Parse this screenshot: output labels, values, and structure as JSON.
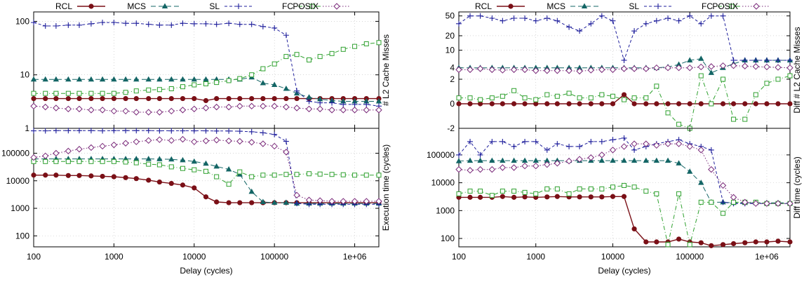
{
  "figure": {
    "left": {
      "xlabel": "Delay (cycles)",
      "ylabel_top": "# L2 Cache Misses",
      "ylabel_bottom": "Execution time (cycles)"
    },
    "right": {
      "xlabel": "Delay (cycles)",
      "ylabel_top": "Diff # L2 Cache Misses",
      "ylabel_bottom": "Diff time (cycles)"
    },
    "legend": [
      "RCL",
      "MCS",
      "SL",
      "FC",
      "POSIX"
    ],
    "x_ticks": [
      "100",
      "1000",
      "10000",
      "100000",
      "1e+06"
    ],
    "y_ticks": {
      "left_top": [
        "1",
        "10",
        "100"
      ],
      "left_bottom": [
        "100",
        "1000",
        "10000",
        "100000"
      ],
      "right_top": [
        "-2",
        "0",
        "2",
        "4",
        "10",
        "20",
        "50"
      ],
      "right_bottom": [
        "100",
        "1000",
        "10000",
        "100000"
      ]
    },
    "colors": {
      "RCL": "#7a0f16",
      "MCS": "#136565",
      "SL": "#1f1f9c",
      "FC": "#2fa12f",
      "POSIX": "#7a2a7a"
    },
    "markers": {
      "RCL": "filled-circle",
      "MCS": "filled-triangle",
      "SL": "plus",
      "FC": "open-square",
      "POSIX": "open-diamond"
    }
  },
  "chart_data": [
    {
      "type": "line",
      "panel": "left-top",
      "ylabel": "# L2 Cache Misses",
      "yscale": "log",
      "ylim": [
        1,
        150
      ],
      "xscale": "log",
      "xlim": [
        100,
        2000000
      ],
      "x": [
        100,
        140,
        190,
        270,
        370,
        520,
        720,
        1000,
        1400,
        1900,
        2700,
        3700,
        5200,
        7200,
        10000,
        14000,
        19000,
        27000,
        37000,
        52000,
        72000,
        100000,
        140000,
        190000,
        270000,
        370000,
        520000,
        720000,
        1000000,
        1400000,
        2000000
      ],
      "series": [
        {
          "name": "RCL",
          "values": [
            3.6,
            3.6,
            3.6,
            3.6,
            3.6,
            3.6,
            3.6,
            3.6,
            3.6,
            3.6,
            3.6,
            3.6,
            3.6,
            3.6,
            3.6,
            3.3,
            3.6,
            3.6,
            3.6,
            3.6,
            3.6,
            3.6,
            3.6,
            3.6,
            3.6,
            3.6,
            3.6,
            3.6,
            3.6,
            3.6,
            3.6
          ]
        },
        {
          "name": "MCS",
          "values": [
            8.2,
            8.2,
            8.2,
            8.2,
            8.2,
            8.2,
            8.2,
            8.2,
            8.2,
            8.2,
            8.2,
            8.2,
            8.2,
            8.2,
            8.2,
            8.2,
            8.2,
            8.2,
            8.2,
            9.0,
            7.0,
            6.5,
            5.5,
            4.5,
            3.8,
            3.5,
            3.3,
            3.2,
            3.2,
            3.2,
            3.2
          ]
        },
        {
          "name": "SL",
          "values": [
            95,
            82,
            82,
            85,
            85,
            90,
            95,
            95,
            92,
            92,
            88,
            85,
            85,
            92,
            90,
            90,
            88,
            92,
            88,
            88,
            80,
            75,
            55,
            5,
            3.2,
            3.0,
            3.0,
            2.8,
            2.8,
            2.8,
            2.6
          ]
        },
        {
          "name": "FC",
          "values": [
            4.5,
            4.5,
            4.5,
            4.5,
            4.5,
            4.5,
            4.5,
            4.5,
            4.7,
            5.0,
            5.2,
            5.3,
            5.5,
            6.0,
            6.5,
            6.8,
            7.2,
            7.8,
            8.5,
            10,
            13,
            16,
            22,
            24,
            19,
            22,
            25,
            30,
            34,
            38,
            40
          ]
        },
        {
          "name": "POSIX",
          "values": [
            2.6,
            2.5,
            2.4,
            2.3,
            2.3,
            2.2,
            2.2,
            2.1,
            2.1,
            2.0,
            2.0,
            2.0,
            2.1,
            2.2,
            2.3,
            2.4,
            2.5,
            2.5,
            2.6,
            2.6,
            2.6,
            2.6,
            2.5,
            2.4,
            2.3,
            2.3,
            2.2,
            2.2,
            2.2,
            2.2,
            2.2
          ]
        }
      ]
    },
    {
      "type": "line",
      "panel": "left-bottom",
      "ylabel": "Execution time (cycles)",
      "yscale": "log",
      "ylim": [
        40,
        800000
      ],
      "xscale": "log",
      "xlim": [
        100,
        2000000
      ],
      "x": [
        100,
        140,
        190,
        270,
        370,
        520,
        720,
        1000,
        1400,
        1900,
        2700,
        3700,
        5200,
        7200,
        10000,
        14000,
        19000,
        27000,
        37000,
        52000,
        72000,
        100000,
        140000,
        190000,
        270000,
        370000,
        520000,
        720000,
        1000000,
        1400000,
        2000000
      ],
      "series": [
        {
          "name": "RCL",
          "values": [
            16000,
            16000,
            16000,
            15500,
            15500,
            15000,
            14500,
            14000,
            13000,
            12000,
            10500,
            9000,
            8000,
            7000,
            5500,
            2600,
            1700,
            1600,
            1600,
            1600,
            1600,
            1600,
            1600,
            1600,
            1600,
            1600,
            1600,
            1600,
            1600,
            1600,
            1600
          ]
        },
        {
          "name": "MCS",
          "values": [
            62000,
            62000,
            62000,
            62000,
            62000,
            62000,
            62000,
            62000,
            62000,
            62000,
            62000,
            61000,
            60000,
            56000,
            50000,
            42000,
            33000,
            26000,
            17000,
            4000,
            1700,
            1600,
            1600,
            1500,
            1500,
            1500,
            1500,
            1500,
            1500,
            1500,
            1500
          ]
        },
        {
          "name": "SL",
          "values": [
            650000,
            650000,
            660000,
            660000,
            660000,
            660000,
            650000,
            660000,
            660000,
            660000,
            660000,
            650000,
            650000,
            650000,
            650000,
            650000,
            640000,
            640000,
            630000,
            600000,
            550000,
            480000,
            270000,
            1500,
            1400,
            1400,
            1400,
            1400,
            1400,
            1400,
            1400
          ]
        },
        {
          "name": "FC",
          "values": [
            50000,
            50000,
            50000,
            50000,
            50000,
            50000,
            50000,
            50000,
            48000,
            45000,
            40000,
            38000,
            32000,
            28000,
            25000,
            22000,
            14000,
            7500,
            21000,
            14000,
            16000,
            16000,
            17000,
            17000,
            18000,
            17500,
            17000,
            16500,
            16000,
            16000,
            16000
          ]
        },
        {
          "name": "POSIX",
          "values": [
            70000,
            80000,
            100000,
            120000,
            140000,
            160000,
            180000,
            200000,
            230000,
            260000,
            290000,
            310000,
            290000,
            320000,
            260000,
            280000,
            300000,
            280000,
            270000,
            250000,
            220000,
            180000,
            110000,
            3000,
            2000,
            1900,
            1800,
            1800,
            1800,
            1800,
            1800
          ]
        }
      ]
    },
    {
      "type": "line",
      "panel": "right-top",
      "ylabel": "Diff # L2 Cache Misses",
      "yscale": "symlog",
      "ylim": [
        -2,
        60
      ],
      "xscale": "log",
      "xlim": [
        100,
        2000000
      ],
      "x": [
        100,
        140,
        190,
        270,
        370,
        520,
        720,
        1000,
        1400,
        1900,
        2700,
        3700,
        5200,
        7200,
        10000,
        14000,
        19000,
        27000,
        37000,
        52000,
        72000,
        100000,
        140000,
        190000,
        270000,
        370000,
        520000,
        720000,
        1000000,
        1400000,
        2000000
      ],
      "series": [
        {
          "name": "RCL",
          "values": [
            0,
            0,
            0,
            0,
            0,
            0,
            0,
            0,
            0,
            0,
            0,
            0,
            0,
            0,
            0,
            0.5,
            0,
            0,
            0,
            0,
            0,
            0,
            0,
            0,
            0,
            0,
            0,
            0,
            0,
            0,
            0
          ]
        },
        {
          "name": "MCS",
          "values": [
            4,
            4,
            4,
            4,
            4,
            4,
            4,
            4,
            4,
            4,
            4,
            4,
            4,
            4,
            4,
            4,
            4,
            4,
            4,
            4.2,
            4.8,
            6,
            6.5,
            3,
            4,
            5,
            6,
            6,
            6,
            6,
            6
          ]
        },
        {
          "name": "SL",
          "values": [
            35,
            50,
            50,
            45,
            40,
            45,
            45,
            40,
            45,
            40,
            30,
            25,
            35,
            50,
            40,
            6,
            25,
            35,
            40,
            45,
            40,
            50,
            35,
            50,
            50,
            6,
            6,
            6,
            6,
            6,
            6
          ]
        },
        {
          "name": "FC",
          "values": [
            0.3,
            0.3,
            0.2,
            0.3,
            0.4,
            0.8,
            0.3,
            0.2,
            0.5,
            0.4,
            0.6,
            0.3,
            0.3,
            0.5,
            0.4,
            0.2,
            0.3,
            0.3,
            1.2,
            -0.5,
            -1.5,
            -2,
            2.5,
            0,
            2,
            -1,
            -1,
            0.5,
            1.5,
            2,
            2.5
          ]
        },
        {
          "name": "POSIX",
          "values": [
            3.6,
            3.6,
            3.8,
            3.6,
            3.5,
            3.6,
            3.6,
            3.4,
            3.4,
            3.4,
            3.4,
            3.3,
            3.5,
            3.6,
            3.6,
            3.8,
            3.8,
            3.8,
            4,
            4,
            4,
            4,
            4.2,
            4.3,
            4.5,
            4.5,
            4.4,
            4.3,
            4.2,
            4.1,
            4
          ]
        }
      ]
    },
    {
      "type": "line",
      "panel": "right-bottom",
      "ylabel": "Diff time (cycles)",
      "yscale": "log",
      "ylim": [
        50,
        900000
      ],
      "xscale": "log",
      "xlim": [
        100,
        2000000
      ],
      "x": [
        100,
        140,
        190,
        270,
        370,
        520,
        720,
        1000,
        1400,
        1900,
        2700,
        3700,
        5200,
        7200,
        10000,
        14000,
        19000,
        27000,
        37000,
        52000,
        72000,
        100000,
        140000,
        190000,
        270000,
        370000,
        520000,
        720000,
        1000000,
        1400000,
        2000000
      ],
      "series": [
        {
          "name": "RCL",
          "values": [
            3000,
            3000,
            3000,
            3000,
            3200,
            3000,
            3100,
            3000,
            3100,
            3200,
            3100,
            3100,
            3100,
            3100,
            3200,
            3200,
            220,
            75,
            75,
            75,
            95,
            75,
            70,
            55,
            60,
            65,
            70,
            75,
            75,
            80,
            75
          ]
        },
        {
          "name": "MCS",
          "values": [
            60000,
            62000,
            62000,
            62000,
            62000,
            62000,
            62000,
            62000,
            62000,
            62000,
            62000,
            62000,
            62000,
            62000,
            62000,
            62000,
            62000,
            62000,
            62000,
            62000,
            50000,
            25000,
            10000,
            2000,
            2000,
            1900,
            1900,
            1900,
            1900,
            1900,
            1900
          ]
        },
        {
          "name": "SL",
          "values": [
            100000,
            300000,
            100000,
            300000,
            300000,
            200000,
            300000,
            300000,
            150000,
            250000,
            200000,
            200000,
            300000,
            300000,
            350000,
            400000,
            150000,
            200000,
            250000,
            300000,
            350000,
            250000,
            200000,
            150000,
            2000,
            1800,
            1800,
            1800,
            1800,
            1800,
            1800
          ]
        },
        {
          "name": "FC",
          "values": [
            4000,
            5000,
            5000,
            3500,
            5000,
            5000,
            4500,
            4000,
            6000,
            6000,
            4000,
            6000,
            6000,
            6000,
            7000,
            8000,
            7000,
            5000,
            4000,
            60,
            4000,
            60,
            2000,
            2000,
            800,
            2000,
            2000,
            2000,
            1800,
            1800,
            1800
          ]
        },
        {
          "name": "POSIX",
          "values": [
            30000,
            28000,
            30000,
            30000,
            35000,
            35000,
            40000,
            40000,
            45000,
            50000,
            60000,
            70000,
            80000,
            100000,
            150000,
            200000,
            250000,
            250000,
            220000,
            250000,
            250000,
            200000,
            150000,
            30000,
            8000,
            3000,
            2000,
            1800,
            1800,
            1800,
            1800
          ]
        }
      ]
    }
  ]
}
